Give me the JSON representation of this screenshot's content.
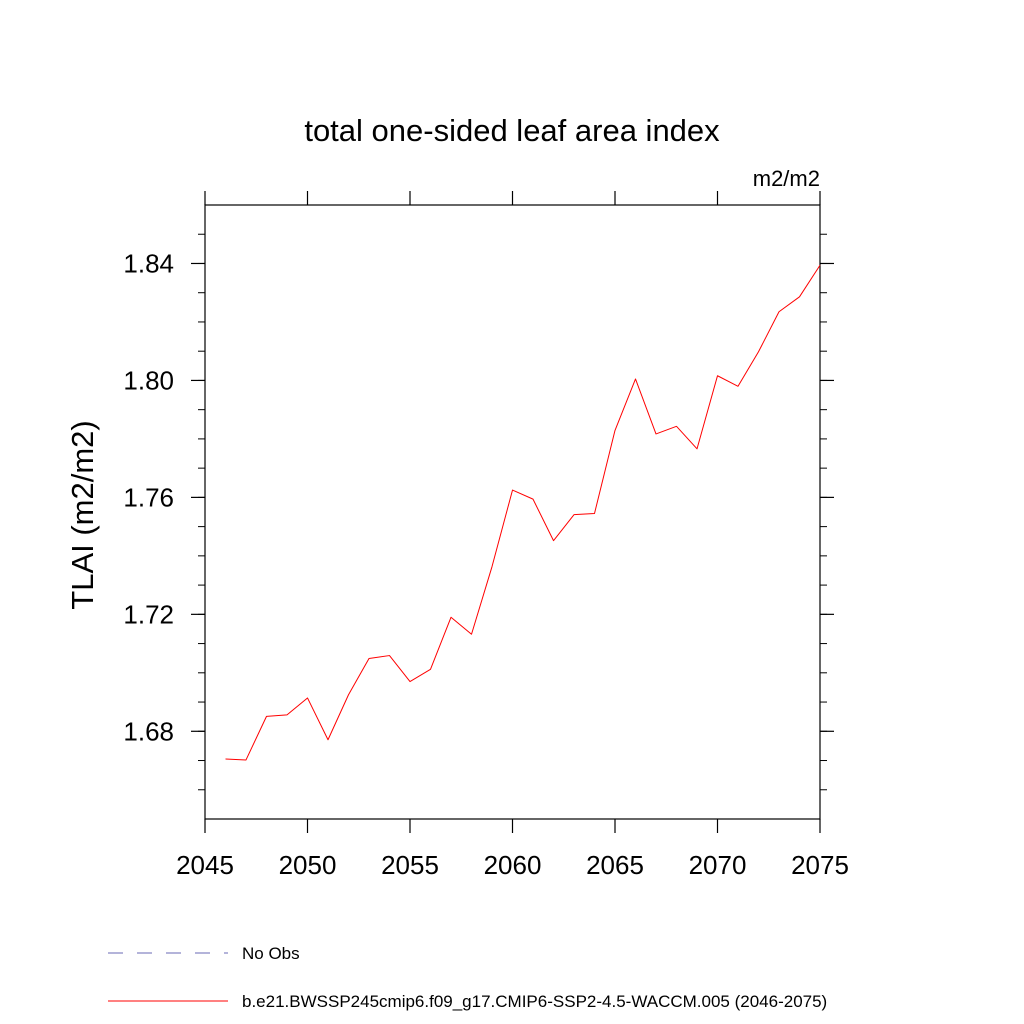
{
  "chart_data": {
    "type": "line",
    "title": "total one-sided leaf area index",
    "units_label": "m2/m2",
    "ylabel": "TLAI  (m2/m2)",
    "xlabel": "",
    "xlim": [
      2045,
      2075
    ],
    "ylim": [
      1.65,
      1.86
    ],
    "x_ticks": [
      2045,
      2050,
      2055,
      2060,
      2065,
      2070,
      2075
    ],
    "y_ticks": [
      1.68,
      1.72,
      1.76,
      1.8,
      1.84
    ],
    "y_tick_labels": [
      "1.68",
      "1.72",
      "1.76",
      "1.80",
      "1.84"
    ],
    "grid": false,
    "legend_position": "bottom",
    "series": [
      {
        "name": "b.e21.BWSSP245cmip6.f09_g17.CMIP6-SSP2-4.5-WACCM.005 (2046-2075)",
        "color": "#ff0000",
        "style": "solid",
        "x": [
          2046,
          2047,
          2048,
          2049,
          2050,
          2051,
          2052,
          2053,
          2054,
          2055,
          2056,
          2057,
          2058,
          2059,
          2060,
          2061,
          2062,
          2063,
          2064,
          2065,
          2066,
          2067,
          2068,
          2069,
          2070,
          2071,
          2072,
          2073,
          2074,
          2075
        ],
        "values": [
          1.6705,
          1.6702,
          1.6851,
          1.6856,
          1.6914,
          1.6771,
          1.6925,
          1.7049,
          1.7059,
          1.697,
          1.7012,
          1.719,
          1.7132,
          1.7363,
          1.7625,
          1.7594,
          1.7452,
          1.7541,
          1.7545,
          1.7829,
          1.8005,
          1.7817,
          1.7843,
          1.7766,
          1.8016,
          1.798,
          1.8098,
          1.8235,
          1.8286,
          1.8394
        ]
      }
    ],
    "legend": [
      {
        "label": "No Obs",
        "color": "#6a6ab4",
        "style": "dashed"
      },
      {
        "label": "b.e21.BWSSP245cmip6.f09_g17.CMIP6-SSP2-4.5-WACCM.005 (2046-2075)",
        "color": "#ff0000",
        "style": "solid"
      }
    ]
  }
}
